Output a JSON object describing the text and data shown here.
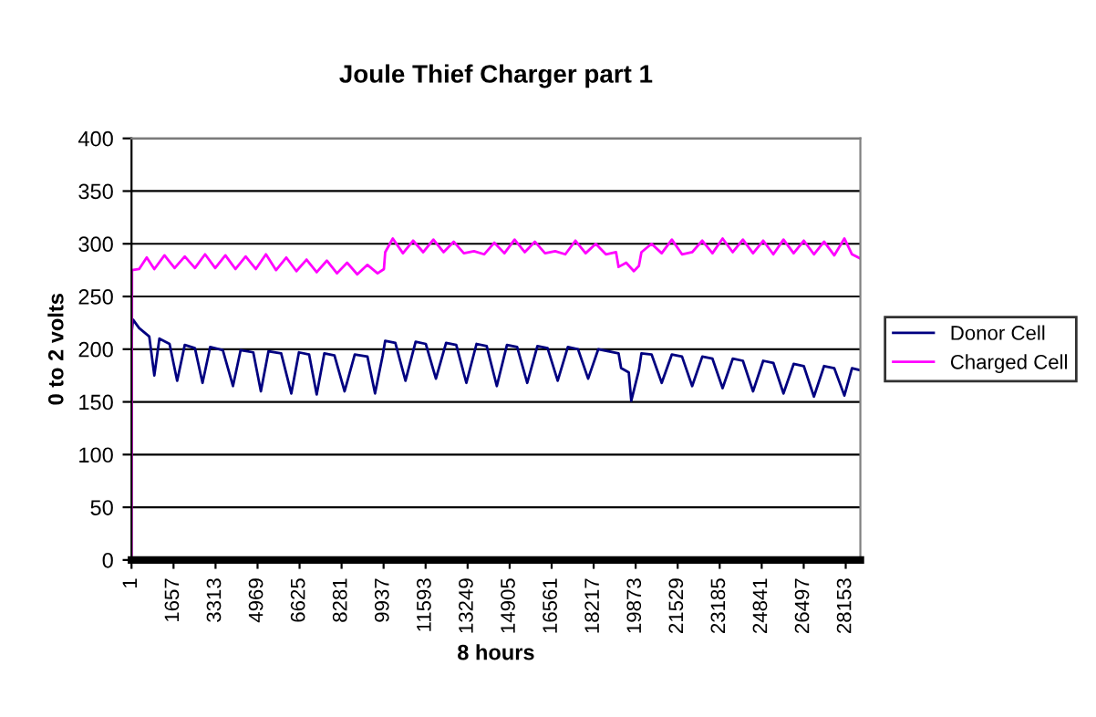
{
  "chart_data": {
    "type": "line",
    "title": "Joule Thief Charger part 1",
    "xlabel": "8 hours",
    "ylabel": "0 to 2 volts",
    "xlim": [
      1,
      28730
    ],
    "xticks": [
      1,
      1657,
      3313,
      4969,
      6625,
      8281,
      9937,
      11593,
      13249,
      14905,
      16561,
      18217,
      19873,
      21529,
      23185,
      24841,
      26497,
      28153
    ],
    "ylim": [
      0,
      400
    ],
    "yticks": [
      0,
      50,
      100,
      150,
      200,
      250,
      300,
      350,
      400
    ],
    "grid": "y",
    "legend": "right",
    "marker": "none",
    "line_style": "solid",
    "series": [
      {
        "name": "Donor Cell",
        "color": "#000080",
        "x": [
          1,
          60,
          300,
          700,
          900,
          1100,
          1500,
          1800,
          2100,
          2500,
          2800,
          3100,
          3600,
          4000,
          4300,
          4800,
          5100,
          5400,
          5900,
          6300,
          6600,
          7000,
          7300,
          7600,
          8000,
          8400,
          8800,
          9300,
          9600,
          9900,
          10000,
          10400,
          10800,
          11200,
          11600,
          12000,
          12400,
          12800,
          13200,
          13600,
          14000,
          14400,
          14800,
          15200,
          15600,
          16000,
          16400,
          16800,
          17200,
          17600,
          18000,
          18400,
          18800,
          19200,
          19300,
          19600,
          19700,
          20000,
          20100,
          20500,
          20900,
          21300,
          21700,
          22100,
          22500,
          22900,
          23300,
          23700,
          24100,
          24500,
          24900,
          25300,
          25700,
          26100,
          26500,
          26900,
          27300,
          27700,
          28100,
          28400,
          28730
        ],
        "values": [
          215,
          228,
          220,
          212,
          175,
          210,
          205,
          170,
          204,
          201,
          168,
          202,
          199,
          165,
          199,
          197,
          160,
          198,
          196,
          158,
          197,
          195,
          157,
          196,
          194,
          160,
          195,
          193,
          158,
          194,
          208,
          206,
          170,
          207,
          205,
          172,
          206,
          204,
          168,
          205,
          203,
          165,
          204,
          202,
          168,
          203,
          201,
          170,
          202,
          200,
          172,
          200,
          198,
          196,
          182,
          178,
          151,
          180,
          196,
          195,
          168,
          195,
          193,
          165,
          193,
          191,
          163,
          191,
          189,
          160,
          189,
          187,
          158,
          186,
          184,
          155,
          184,
          182,
          156,
          182,
          180
        ]
      },
      {
        "name": "Charged Cell",
        "color": "#ff00ff",
        "x": [
          1,
          20,
          300,
          600,
          900,
          1300,
          1700,
          2100,
          2500,
          2900,
          3300,
          3700,
          4100,
          4500,
          4900,
          5300,
          5700,
          6100,
          6500,
          6900,
          7300,
          7700,
          8100,
          8500,
          8900,
          9300,
          9700,
          9950,
          10000,
          10300,
          10700,
          11100,
          11500,
          11900,
          12300,
          12700,
          13100,
          13500,
          13900,
          14300,
          14700,
          15100,
          15500,
          15900,
          16300,
          16700,
          17100,
          17500,
          17900,
          18300,
          18700,
          19100,
          19200,
          19500,
          19800,
          20000,
          20100,
          20500,
          20900,
          21300,
          21700,
          22100,
          22500,
          22900,
          23300,
          23700,
          24100,
          24500,
          24900,
          25300,
          25700,
          26100,
          26500,
          26900,
          27300,
          27700,
          28100,
          28400,
          28730
        ],
        "values": [
          0,
          275,
          276,
          287,
          276,
          289,
          277,
          288,
          277,
          290,
          277,
          289,
          276,
          288,
          276,
          290,
          275,
          287,
          274,
          285,
          273,
          284,
          272,
          282,
          271,
          280,
          272,
          276,
          292,
          305,
          291,
          303,
          292,
          304,
          292,
          302,
          291,
          293,
          290,
          301,
          291,
          304,
          292,
          302,
          291,
          293,
          290,
          303,
          291,
          300,
          290,
          292,
          278,
          282,
          274,
          279,
          292,
          300,
          291,
          304,
          290,
          292,
          303,
          291,
          305,
          292,
          304,
          291,
          303,
          290,
          304,
          291,
          303,
          290,
          302,
          289,
          305,
          290,
          286
        ]
      }
    ]
  }
}
